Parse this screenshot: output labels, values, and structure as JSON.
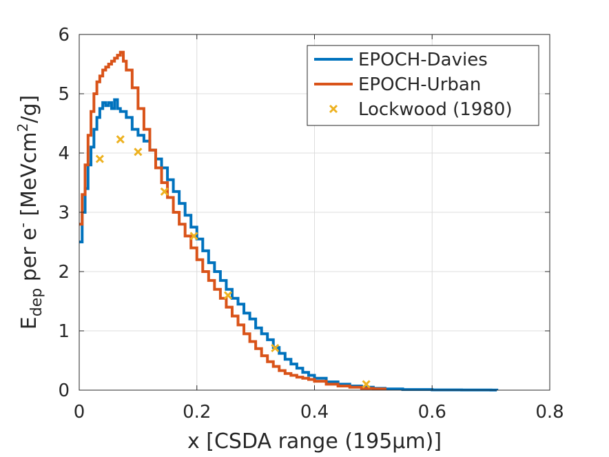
{
  "chart_data": {
    "type": "line",
    "xlabel": "x [CSDA range (195μm)]",
    "ylabel": {
      "prefix": "E",
      "subscript": "dep",
      "middle": " per e",
      "superscript": "-",
      "unit_start": " [MeVcm",
      "unit_power": "2",
      "unit_end": "/g]"
    },
    "xlim": [
      0,
      0.8
    ],
    "ylim": [
      0,
      6
    ],
    "xticks": [
      0,
      0.2,
      0.4,
      0.6,
      0.8
    ],
    "xtick_labels": [
      "0",
      "0.2",
      "0.4",
      "0.6",
      "0.8"
    ],
    "yticks": [
      0,
      1,
      2,
      3,
      4,
      5,
      6
    ],
    "ytick_labels": [
      "0",
      "1",
      "2",
      "3",
      "4",
      "5",
      "6"
    ],
    "grid": true,
    "legend_position": "top-right",
    "series": [
      {
        "name": "EPOCH-Davies",
        "style": "line",
        "color": "#0072BD",
        "x": [
          0,
          0.005,
          0.01,
          0.015,
          0.02,
          0.025,
          0.03,
          0.035,
          0.04,
          0.045,
          0.05,
          0.055,
          0.06,
          0.065,
          0.07,
          0.075,
          0.08,
          0.09,
          0.1,
          0.11,
          0.12,
          0.13,
          0.14,
          0.15,
          0.16,
          0.17,
          0.18,
          0.19,
          0.2,
          0.21,
          0.22,
          0.23,
          0.24,
          0.25,
          0.26,
          0.27,
          0.28,
          0.29,
          0.3,
          0.31,
          0.32,
          0.33,
          0.34,
          0.35,
          0.36,
          0.37,
          0.38,
          0.39,
          0.4,
          0.42,
          0.44,
          0.46,
          0.48,
          0.5,
          0.52,
          0.55,
          0.6,
          0.65,
          0.7,
          0.71
        ],
        "y": [
          2.5,
          3.0,
          3.4,
          3.8,
          4.1,
          4.4,
          4.6,
          4.75,
          4.85,
          4.8,
          4.85,
          4.75,
          4.9,
          4.75,
          4.7,
          4.7,
          4.6,
          4.4,
          4.3,
          4.2,
          4.05,
          3.9,
          3.75,
          3.55,
          3.35,
          3.15,
          2.95,
          2.75,
          2.55,
          2.35,
          2.15,
          2.0,
          1.85,
          1.7,
          1.55,
          1.45,
          1.3,
          1.2,
          1.05,
          0.95,
          0.85,
          0.72,
          0.62,
          0.52,
          0.44,
          0.37,
          0.3,
          0.25,
          0.2,
          0.14,
          0.1,
          0.07,
          0.05,
          0.03,
          0.02,
          0.01,
          0.005,
          0.003,
          0.001,
          0.0
        ],
        "data_points": []
      },
      {
        "name": "EPOCH-Urban",
        "style": "line",
        "color": "#D95319",
        "x": [
          0,
          0.005,
          0.01,
          0.015,
          0.02,
          0.025,
          0.03,
          0.035,
          0.04,
          0.045,
          0.05,
          0.055,
          0.06,
          0.065,
          0.07,
          0.075,
          0.08,
          0.09,
          0.1,
          0.11,
          0.12,
          0.13,
          0.14,
          0.15,
          0.16,
          0.17,
          0.18,
          0.19,
          0.2,
          0.21,
          0.22,
          0.23,
          0.24,
          0.25,
          0.26,
          0.27,
          0.28,
          0.29,
          0.3,
          0.31,
          0.32,
          0.33,
          0.34,
          0.35,
          0.36,
          0.37,
          0.38,
          0.39,
          0.4,
          0.42,
          0.44,
          0.46,
          0.48,
          0.5,
          0.52
        ],
        "y": [
          2.8,
          3.3,
          3.8,
          4.3,
          4.7,
          5.0,
          5.2,
          5.3,
          5.4,
          5.45,
          5.5,
          5.55,
          5.6,
          5.65,
          5.7,
          5.55,
          5.4,
          5.1,
          4.75,
          4.4,
          4.05,
          3.75,
          3.5,
          3.25,
          3.0,
          2.8,
          2.6,
          2.4,
          2.2,
          2.0,
          1.85,
          1.7,
          1.55,
          1.4,
          1.25,
          1.1,
          0.95,
          0.82,
          0.7,
          0.58,
          0.48,
          0.4,
          0.33,
          0.28,
          0.25,
          0.22,
          0.2,
          0.18,
          0.15,
          0.1,
          0.07,
          0.05,
          0.03,
          0.02,
          0.0
        ],
        "data_points": []
      },
      {
        "name": "Lockwood (1980)",
        "style": "marker",
        "color": "#EDB120",
        "x": [],
        "y": [],
        "data_points": [
          {
            "x": 0.035,
            "y": 3.9
          },
          {
            "x": 0.07,
            "y": 4.23
          },
          {
            "x": 0.1,
            "y": 4.02
          },
          {
            "x": 0.145,
            "y": 3.35
          },
          {
            "x": 0.195,
            "y": 2.6
          },
          {
            "x": 0.253,
            "y": 1.6
          },
          {
            "x": 0.333,
            "y": 0.71
          },
          {
            "x": 0.488,
            "y": 0.1
          }
        ]
      }
    ]
  }
}
